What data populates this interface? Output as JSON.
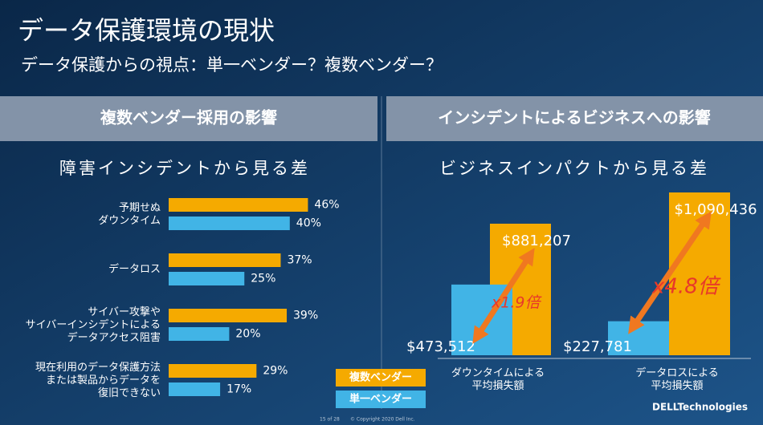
{
  "title": "データ保護環境の現状",
  "subtitle": "データ保護からの視点：単一ベンダー？複数ベンダー？",
  "chart_data": [
    {
      "type": "hbar",
      "title": "複数ベンダー採用の影響",
      "subtitle": "障害インシデントから見る差",
      "categories": [
        "予期せぬ\nダウンタイム",
        "データロス",
        "サイバー攻撃や\nサイバーインシデントによる\nデータアクセス阻害",
        "現在利用のデータ保護方法\nまたは製品からデータを\n復旧できない"
      ],
      "series": [
        {
          "name": "複数ベンダー",
          "color": "#f5aa00",
          "values": [
            46,
            37,
            39,
            29
          ],
          "value_labels": [
            "46%",
            "37%",
            "39%",
            "29%"
          ]
        },
        {
          "name": "単一ベンダー",
          "color": "#41b4e6",
          "values": [
            40,
            25,
            20,
            17
          ],
          "value_labels": [
            "40%",
            "25%",
            "20%",
            "17%"
          ]
        }
      ]
    },
    {
      "type": "bar",
      "title": "インシデントによるビジネスへの影響",
      "subtitle": "ビジネスインパクトから見る差",
      "categories": [
        "ダウンタイムによる\n平均損失額",
        "データロスによる\n平均損失額"
      ],
      "series": [
        {
          "name": "複数ベンダー",
          "color": "#f5aa00",
          "values": [
            881207,
            1090436
          ],
          "value_labels": [
            "$881,207",
            "$1,090,436"
          ]
        },
        {
          "name": "単一ベンダー",
          "color": "#41b4e6",
          "values": [
            473512,
            227781
          ],
          "value_labels": [
            "$473,512",
            "$227,781"
          ]
        }
      ],
      "annotations": [
        "x1.9倍",
        "x4.8倍"
      ]
    }
  ],
  "footer": {
    "page": "15 of 28",
    "copyright": "© Copyright 2020 Dell Inc.",
    "logo": "DELLTechnologies"
  }
}
